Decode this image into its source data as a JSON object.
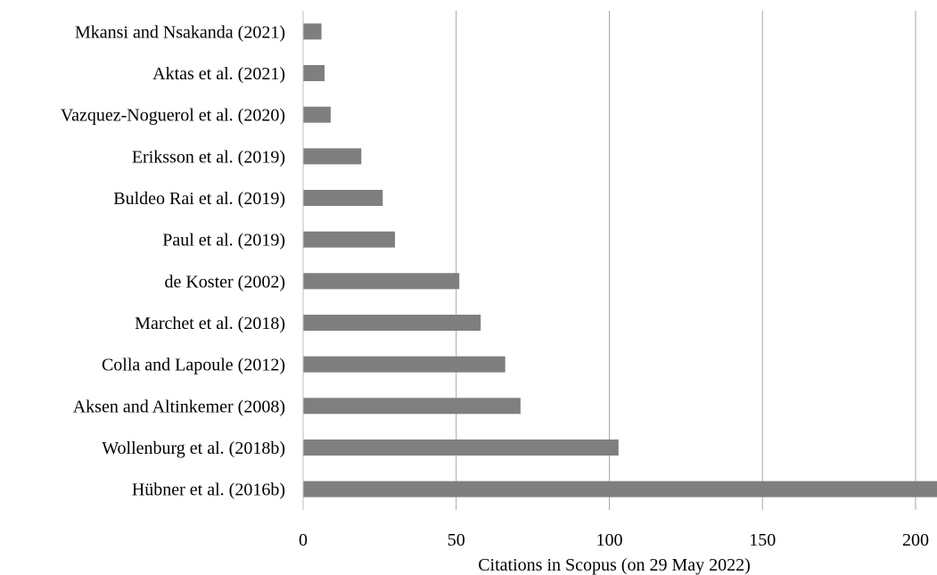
{
  "chart_data": {
    "type": "bar",
    "orientation": "horizontal",
    "categories": [
      "Mkansi and Nsakanda (2021)",
      "Aktas et al. (2021)",
      "Vazquez-Noguerol et al. (2020)",
      "Eriksson et al. (2019)",
      "Buldeo Rai et al. (2019)",
      "Paul et al. (2019)",
      "de Koster (2002)",
      "Marchet et al. (2018)",
      "Colla and Lapoule (2012)",
      "Aksen and Altinkemer (2008)",
      "Wollenburg et al. (2018b)",
      "Hübner et al. (2016b)"
    ],
    "values": [
      6,
      7,
      9,
      19,
      26,
      30,
      51,
      58,
      66,
      71,
      103,
      207
    ],
    "xlabel": "Citations in Scopus (on 29 May 2022)",
    "ylabel": "",
    "title": "",
    "xlim": [
      0,
      207
    ],
    "xticks": [
      0,
      50,
      100,
      150,
      200
    ],
    "grid": "vertical",
    "legend": "none",
    "colors": {
      "bar": "#7f7f7f",
      "grid": "#a6a6a6",
      "axis": "#bfbfbf",
      "text": "#000000"
    }
  }
}
